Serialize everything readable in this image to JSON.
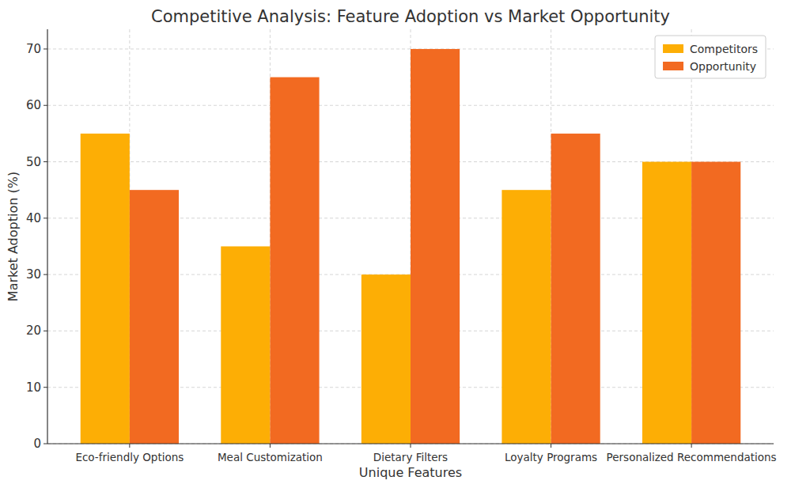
{
  "chart_data": {
    "type": "bar",
    "title": "Competitive Analysis: Feature Adoption vs Market Opportunity",
    "x_label": "Unique Features",
    "y_label": "Market Adoption (%)",
    "categories": [
      "Eco-friendly Options",
      "Meal Customization",
      "Dietary Filters",
      "Loyalty Programs",
      "Personalized Recommendations"
    ],
    "series": [
      {
        "name": "Competitors",
        "color": "#fdae05",
        "values": [
          55,
          35,
          30,
          45,
          50
        ]
      },
      {
        "name": "Opportunity",
        "color": "#f26a21",
        "values": [
          45,
          65,
          70,
          55,
          50
        ]
      }
    ],
    "ylim": [
      0,
      73.5
    ],
    "yticks": [
      0,
      10,
      20,
      30,
      40,
      50,
      60,
      70
    ],
    "grid": true,
    "legend": "upper right"
  }
}
